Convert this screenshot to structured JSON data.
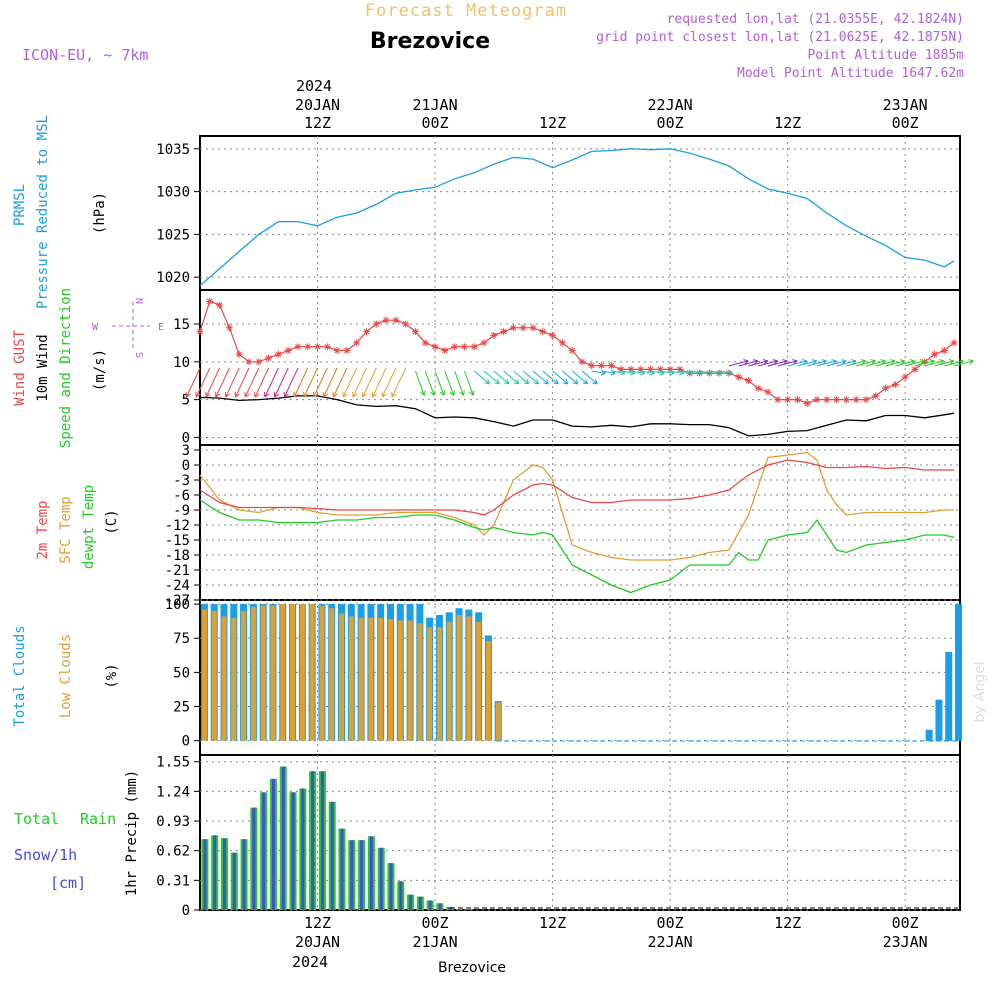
{
  "colors": {
    "pressure": "#1a9ee6",
    "gust": "#e84848",
    "wind": "#000000",
    "barb_green": "#22cc22",
    "temp2m": "#e84848",
    "sfc": "#e0a030",
    "dewpt": "#22cc22",
    "total_clouds": "#1a9ee6",
    "low_clouds": "#e0a030",
    "rain": "#22cc22",
    "snow": "#4848e8",
    "header_purple": "#b060d8",
    "header_orange": "#f0c070",
    "grid": "#888888"
  },
  "header": {
    "app_title": "Forecast Meteogram",
    "station": "Brezovice",
    "model": "ICON-EU, ~ 7km",
    "requested": "requested lon,lat (21.0355E, 42.1824N)",
    "grid_point": "grid point closest lon,lat (21.0625E, 42.1875N)",
    "point_altitude": "Point Altitude 1885m",
    "model_altitude": "Model Point Altitude 1647.62m",
    "footer_station": "Brezovice",
    "watermark": "by Angel"
  },
  "time_axis": {
    "top_year": "2024",
    "ticks": [
      {
        "h": 12,
        "top": "20JAN",
        "hour": "12Z"
      },
      {
        "h": 24,
        "top": "21JAN",
        "hour": "00Z"
      },
      {
        "h": 36,
        "top": "",
        "hour": "12Z"
      },
      {
        "h": 48,
        "top": "22JAN",
        "hour": "00Z"
      },
      {
        "h": 60,
        "top": "",
        "hour": "12Z"
      },
      {
        "h": 72,
        "top": "23JAN",
        "hour": "00Z"
      }
    ],
    "bottom_year": "2024"
  },
  "panels": {
    "pressure": {
      "label1": "PRMSL",
      "label2": "Pressure Reduced to MSL",
      "unit": "(hPa)",
      "yticks": [
        "1035",
        "1030",
        "1025",
        "1020"
      ]
    },
    "wind": {
      "label1": "Wind GUST",
      "label2": "10m Wind",
      "label3": "Speed and Direction",
      "unit": "(m/s)",
      "yticks": [
        "15",
        "10",
        "5",
        "0"
      ],
      "compass": [
        "N",
        "W",
        "E",
        "S"
      ]
    },
    "temp": {
      "label1": "2m Temp",
      "label2": "SFC Temp",
      "label3": "dewpt Temp",
      "unit": "(C)",
      "yticks": [
        "3",
        "0",
        "-3",
        "-6",
        "-9",
        "-12",
        "-15",
        "-18",
        "-21",
        "-24",
        "-27"
      ]
    },
    "clouds": {
      "label1": "Total Clouds",
      "label2": "Low Clouds",
      "unit": "(%)",
      "yticks": [
        "100",
        "75",
        "50",
        "25",
        "0"
      ]
    },
    "precip": {
      "label1": "Total",
      "label1b": "Rain",
      "label2": "Snow/1h",
      "label3": "[cm]",
      "unit": "1hr Precip (mm)",
      "yticks": [
        "1.55",
        "1.24",
        "0.93",
        "0.62",
        "0.31",
        "0"
      ]
    }
  },
  "chart_data": [
    {
      "type": "line",
      "title": "PRMSL Pressure Reduced to MSL",
      "ylabel": "(hPa)",
      "ylim": [
        1018.5,
        1036.5
      ],
      "x_hours": [
        0,
        2,
        4,
        6,
        8,
        10,
        12,
        14,
        16,
        18,
        20,
        22,
        24,
        26,
        28,
        30,
        32,
        34,
        36,
        38,
        40,
        42,
        44,
        46,
        48,
        50,
        52,
        54,
        56,
        58,
        60,
        62,
        64,
        66,
        68,
        70,
        72,
        74,
        76,
        77
      ],
      "values": [
        1019,
        1021,
        1023,
        1025,
        1026.5,
        1026.5,
        1026,
        1027,
        1027.5,
        1028.5,
        1029.8,
        1030.2,
        1030.5,
        1031.5,
        1032.2,
        1033.2,
        1034,
        1033.8,
        1032.8,
        1033.7,
        1034.7,
        1034.8,
        1035,
        1034.9,
        1035,
        1034.5,
        1033.8,
        1033,
        1031.5,
        1030.3,
        1029.8,
        1029.2,
        1027.5,
        1026,
        1024.8,
        1023.7,
        1022.3,
        1022,
        1021.2,
        1021.9
      ]
    },
    {
      "type": "line",
      "title": "Wind GUST / 10m Wind Speed",
      "ylabel": "(m/s)",
      "ylim": [
        -1,
        19.5
      ],
      "series": [
        {
          "name": "Wind GUST",
          "x_hours": [
            0,
            1,
            2,
            3,
            4,
            5,
            6,
            7,
            8,
            9,
            10,
            11,
            12,
            13,
            14,
            15,
            16,
            17,
            18,
            19,
            20,
            21,
            22,
            23,
            24,
            25,
            26,
            27,
            28,
            29,
            30,
            31,
            32,
            33,
            34,
            35,
            36,
            37,
            38,
            39,
            40,
            41,
            42,
            43,
            44,
            45,
            46,
            47,
            48,
            49,
            50,
            51,
            52,
            53,
            54,
            55,
            56,
            57,
            58,
            59,
            60,
            61,
            62,
            63,
            64,
            65,
            66,
            67,
            68,
            69,
            70,
            71,
            72,
            73,
            74,
            75,
            76,
            77
          ],
          "values": [
            14,
            18,
            17.5,
            14.5,
            11,
            10,
            10,
            10.5,
            11,
            11.5,
            12,
            12,
            12,
            12,
            11.5,
            11.5,
            12.5,
            14,
            15,
            15.5,
            15.5,
            15,
            14,
            12.5,
            12,
            11.5,
            12,
            12,
            12,
            12.5,
            13.5,
            14,
            14.5,
            14.5,
            14.5,
            14,
            13.5,
            12.5,
            11.5,
            10,
            9.5,
            9.5,
            9.5,
            9,
            9,
            9,
            9,
            9,
            9,
            9,
            8.5,
            8.5,
            8.5,
            8.5,
            8.5,
            8,
            7.5,
            6.5,
            6,
            5,
            5,
            5,
            4.5,
            5,
            5,
            5,
            5,
            5,
            5,
            5.5,
            6.5,
            7,
            8,
            9,
            10,
            11,
            11.5,
            12.5
          ]
        },
        {
          "name": "10m Wind",
          "x_hours": [
            0,
            2,
            4,
            6,
            8,
            10,
            12,
            14,
            16,
            18,
            20,
            22,
            24,
            26,
            28,
            30,
            32,
            34,
            36,
            38,
            40,
            42,
            44,
            46,
            48,
            50,
            52,
            54,
            56,
            58,
            60,
            62,
            64,
            66,
            68,
            70,
            72,
            74,
            76,
            77
          ],
          "values": [
            5.3,
            5.2,
            4.9,
            5.0,
            5.2,
            5.5,
            5.5,
            5.0,
            4.3,
            4.1,
            4.2,
            3.8,
            2.6,
            2.7,
            2.6,
            2.1,
            1.5,
            2.3,
            2.3,
            1.5,
            1.4,
            1.6,
            1.4,
            1.8,
            1.8,
            1.7,
            1.7,
            1.3,
            0.2,
            0.4,
            0.8,
            0.9,
            1.6,
            2.3,
            2.2,
            2.9,
            2.9,
            2.6,
            3.0,
            3.2
          ]
        }
      ]
    },
    {
      "type": "line",
      "title": "2m / SFC / dewpt Temp",
      "ylabel": "(C)",
      "ylim": [
        -27,
        4
      ],
      "series": [
        {
          "name": "2m Temp",
          "x_hours": [
            0,
            2,
            4,
            6,
            8,
            10,
            12,
            14,
            16,
            18,
            20,
            22,
            24,
            26,
            28,
            29,
            30,
            32,
            34,
            35,
            36,
            38,
            40,
            42,
            44,
            46,
            48,
            50,
            52,
            54,
            56,
            58,
            60,
            62,
            64,
            66,
            68,
            70,
            72,
            74,
            76,
            77
          ],
          "values": [
            -5,
            -7.5,
            -8.5,
            -8.5,
            -8.5,
            -8.5,
            -8.7,
            -9,
            -9,
            -9,
            -9,
            -9,
            -9,
            -9,
            -9.5,
            -10,
            -9,
            -6,
            -4,
            -3.7,
            -4,
            -6.5,
            -7.5,
            -7.5,
            -7,
            -7,
            -7,
            -6.7,
            -6,
            -5,
            -2,
            0,
            1,
            0.5,
            -0.5,
            -0.5,
            -0.3,
            -0.7,
            -0.5,
            -1,
            -1,
            -1
          ]
        },
        {
          "name": "SFC Temp",
          "x_hours": [
            0,
            2,
            4,
            6,
            8,
            10,
            12,
            14,
            16,
            18,
            20,
            22,
            24,
            26,
            28,
            29,
            30,
            32,
            34,
            35,
            36,
            38,
            40,
            42,
            44,
            46,
            48,
            50,
            52,
            54,
            56,
            58,
            60,
            62,
            63,
            64,
            65,
            66,
            68,
            70,
            72,
            74,
            76,
            77
          ],
          "values": [
            -2,
            -7,
            -9,
            -9.5,
            -8.5,
            -8.5,
            -9.5,
            -10,
            -10,
            -10,
            -9.5,
            -9.5,
            -9.5,
            -10.5,
            -12,
            -14,
            -12,
            -3,
            0,
            -0.5,
            -3,
            -16,
            -17.5,
            -18.5,
            -19,
            -19,
            -19,
            -18.5,
            -17.5,
            -17,
            -10,
            1.5,
            2,
            2.5,
            1,
            -5,
            -8,
            -10,
            -9.5,
            -9.5,
            -9.5,
            -9.5,
            -9,
            -9
          ]
        },
        {
          "name": "dewpt Temp",
          "x_hours": [
            0,
            2,
            4,
            6,
            8,
            10,
            12,
            14,
            16,
            18,
            20,
            22,
            24,
            26,
            28,
            29,
            30,
            32,
            34,
            35,
            36,
            38,
            40,
            42,
            44,
            46,
            48,
            50,
            52,
            54,
            55,
            56,
            57,
            58,
            60,
            62,
            63,
            64,
            65,
            66,
            68,
            70,
            72,
            74,
            76,
            77
          ],
          "values": [
            -7,
            -9.5,
            -11,
            -11,
            -11.5,
            -11.5,
            -11.5,
            -11,
            -11,
            -10.5,
            -10.5,
            -10,
            -10,
            -11,
            -12.5,
            -13,
            -12.5,
            -13.5,
            -14,
            -13.5,
            -14,
            -20,
            -22,
            -24,
            -25.5,
            -24,
            -23,
            -20,
            -20,
            -20,
            -17.5,
            -19,
            -19,
            -15,
            -14,
            -13.5,
            -11,
            -14,
            -17,
            -17.5,
            -16,
            -15.5,
            -15,
            -14,
            -14,
            -14.5
          ]
        }
      ]
    },
    {
      "type": "bar",
      "title": "Total Clouds / Low Clouds",
      "ylabel": "(%)",
      "ylim": [
        0,
        100
      ],
      "x_hours": [
        0,
        1,
        2,
        3,
        4,
        5,
        6,
        7,
        8,
        9,
        10,
        11,
        12,
        13,
        14,
        15,
        16,
        17,
        18,
        19,
        20,
        21,
        22,
        23,
        24,
        25,
        26,
        27,
        28,
        29,
        30,
        31,
        32,
        33,
        34,
        35,
        36,
        37,
        38,
        39,
        40,
        41,
        42,
        43,
        44,
        45,
        46,
        47,
        48,
        49,
        50,
        51,
        52,
        53,
        54,
        55,
        56,
        57,
        58,
        59,
        60,
        61,
        62,
        63,
        64,
        65,
        66,
        67,
        68,
        69,
        70,
        71,
        72,
        73,
        74,
        75,
        76,
        77
      ],
      "series": [
        {
          "name": "Total Clouds",
          "values": [
            100,
            100,
            100,
            100,
            100,
            100,
            100,
            100,
            100,
            100,
            100,
            100,
            100,
            100,
            100,
            100,
            100,
            100,
            100,
            100,
            100,
            100,
            100,
            90,
            92,
            94,
            97,
            96,
            94,
            77,
            29,
            0,
            0,
            0,
            0,
            0,
            0,
            0,
            0,
            0,
            0,
            0,
            0,
            0,
            0,
            0,
            0,
            0,
            0,
            0,
            0,
            0,
            0,
            0,
            0,
            0,
            0,
            0,
            0,
            0,
            0,
            0,
            0,
            0,
            0,
            0,
            0,
            0,
            0,
            0,
            0,
            0,
            0,
            0,
            8,
            30,
            65,
            100
          ]
        },
        {
          "name": "Low Clouds",
          "values": [
            96,
            95,
            91,
            90,
            95,
            98,
            99,
            99,
            100,
            100,
            100,
            100,
            99,
            97,
            93,
            91,
            90,
            90,
            90,
            89,
            88,
            88,
            86,
            83,
            83,
            87,
            92,
            91,
            87,
            73,
            28,
            0,
            0,
            0,
            0,
            0,
            0,
            0,
            0,
            0,
            0,
            0,
            0,
            0,
            0,
            0,
            0,
            0,
            0,
            0,
            0,
            0,
            0,
            0,
            0,
            0,
            0,
            0,
            0,
            0,
            0,
            0,
            0,
            0,
            0,
            0,
            0,
            0,
            0,
            0,
            0,
            0,
            0,
            0,
            0,
            0,
            0,
            0
          ]
        }
      ]
    },
    {
      "type": "bar",
      "title": "1hr Precip",
      "ylabel": "1hr Precip (mm)",
      "ylim": [
        0,
        1.55
      ],
      "x_hours": [
        1,
        2,
        3,
        4,
        5,
        6,
        7,
        8,
        9,
        10,
        11,
        12,
        13,
        14,
        15,
        16,
        17,
        18,
        19,
        20,
        21,
        22,
        23,
        24,
        25,
        26,
        27,
        28
      ],
      "series": [
        {
          "name": "Total Rain",
          "values": [
            0.74,
            0.78,
            0.75,
            0.6,
            0.74,
            1.07,
            1.23,
            1.37,
            1.5,
            1.23,
            1.27,
            1.45,
            1.45,
            1.13,
            0.85,
            0.73,
            0.73,
            0.77,
            0.65,
            0.49,
            0.3,
            0.16,
            0.14,
            0.1,
            0.07,
            0.03,
            0.01,
            0.01
          ]
        },
        {
          "name": "Snow/1h",
          "values": [
            0.74,
            0.78,
            0.75,
            0.6,
            0.74,
            1.07,
            1.23,
            1.37,
            1.5,
            1.23,
            1.27,
            1.45,
            1.45,
            1.13,
            0.85,
            0.73,
            0.73,
            0.77,
            0.65,
            0.49,
            0.3,
            0.16,
            0.14,
            0.1,
            0.07,
            0.03,
            0.01,
            0.01
          ]
        }
      ]
    }
  ]
}
